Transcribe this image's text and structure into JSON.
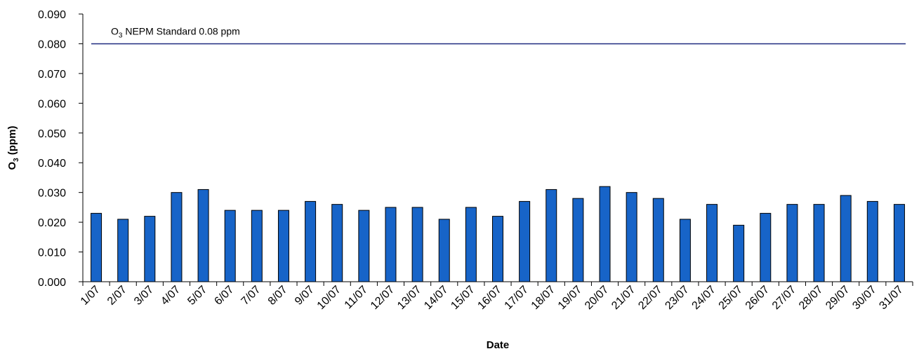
{
  "chart_data": {
    "type": "bar",
    "categories": [
      "1/07",
      "2/07",
      "3/07",
      "4/07",
      "5/07",
      "6/07",
      "7/07",
      "8/07",
      "9/07",
      "10/07",
      "11/07",
      "12/07",
      "13/07",
      "14/07",
      "15/07",
      "16/07",
      "17/07",
      "18/07",
      "19/07",
      "20/07",
      "21/07",
      "22/07",
      "23/07",
      "24/07",
      "25/07",
      "26/07",
      "27/07",
      "28/07",
      "29/07",
      "30/07",
      "31/07"
    ],
    "values": [
      0.023,
      0.021,
      0.022,
      0.03,
      0.031,
      0.024,
      0.024,
      0.024,
      0.027,
      0.026,
      0.024,
      0.025,
      0.025,
      0.021,
      0.025,
      0.022,
      0.027,
      0.031,
      0.028,
      0.032,
      0.03,
      0.028,
      0.021,
      0.026,
      0.019,
      0.023,
      0.026,
      0.026,
      0.029,
      0.027,
      0.026
    ],
    "xlabel": "Date",
    "ylabel": {
      "main": "O",
      "sub": "3",
      "rest": " (ppm)"
    },
    "ylim": [
      0,
      0.09
    ],
    "yticks": [
      "0.000",
      "0.010",
      "0.020",
      "0.030",
      "0.040",
      "0.050",
      "0.060",
      "0.070",
      "0.080",
      "0.090"
    ],
    "reference_line": {
      "value": 0.08,
      "label_main": "O",
      "label_sub": "3",
      "label_rest": " NEPM Standard 0.08 ppm"
    },
    "bar_color": "#1764C8",
    "line_color": "#1F2A80",
    "grid": false,
    "legend": "none"
  }
}
